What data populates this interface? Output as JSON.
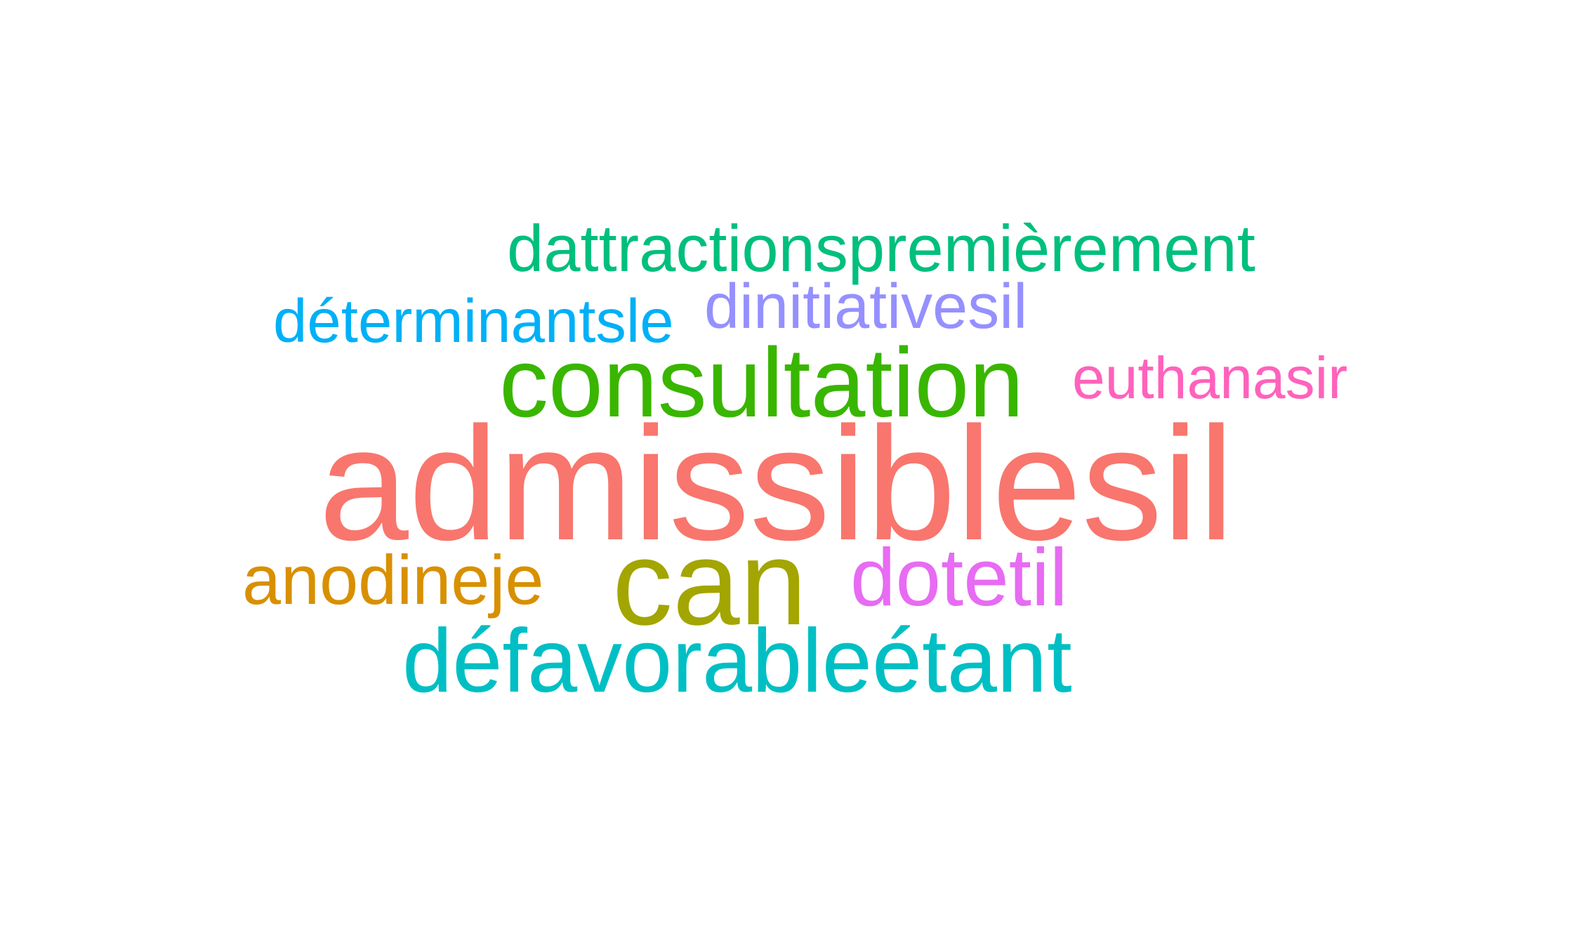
{
  "words": [
    {
      "text": "admissiblesil",
      "color": "#F8766D"
    },
    {
      "text": "consultation",
      "color": "#39B600"
    },
    {
      "text": "can",
      "color": "#A3A500"
    },
    {
      "text": "défavorableétant",
      "color": "#00BFC4"
    },
    {
      "text": "dattractionspremièrement",
      "color": "#00BF7D"
    },
    {
      "text": "dinitiativesil",
      "color": "#9590FF"
    },
    {
      "text": "déterminantsle",
      "color": "#00B0F6"
    },
    {
      "text": "euthanasir",
      "color": "#FF62BC"
    },
    {
      "text": "anodineje",
      "color": "#D89000"
    },
    {
      "text": "dotetil",
      "color": "#E76BF3"
    }
  ]
}
